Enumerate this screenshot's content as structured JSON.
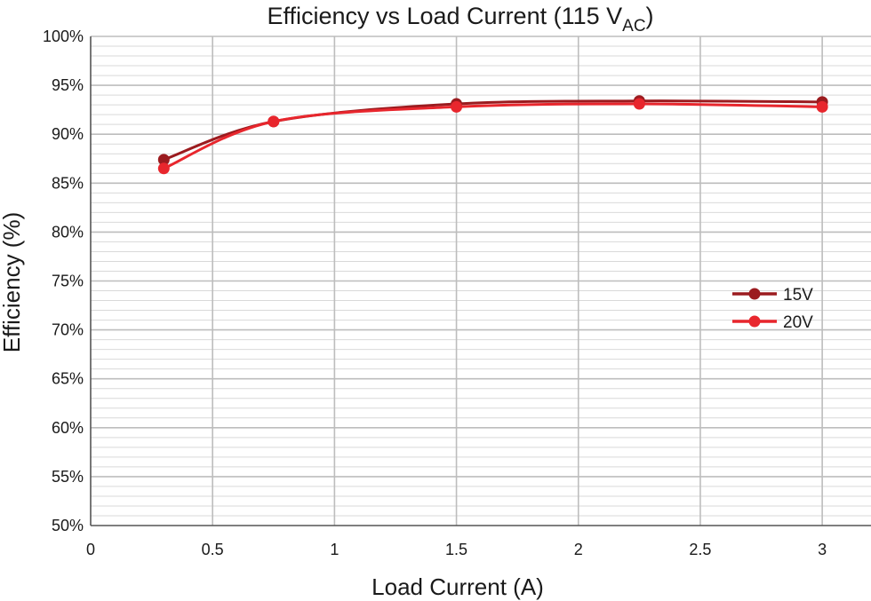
{
  "chart_data": {
    "type": "line",
    "title": "Efficiency vs Load Current (115 V",
    "title_subscript": "AC",
    "title_suffix": ")",
    "xlabel": "Load Current (A)",
    "ylabel": "Efficiency (%)",
    "xlim": [
      0,
      3.2
    ],
    "ylim": [
      50,
      100
    ],
    "x_ticks": [
      0,
      0.5,
      1,
      1.5,
      2,
      2.5,
      3
    ],
    "x_tick_labels": [
      "0",
      "0.5",
      "1",
      "1.5",
      "2",
      "2.5",
      "3"
    ],
    "y_ticks": [
      50,
      55,
      60,
      65,
      70,
      75,
      80,
      85,
      90,
      95,
      100
    ],
    "y_tick_labels": [
      "50%",
      "55%",
      "60%",
      "65%",
      "70%",
      "75%",
      "80%",
      "85%",
      "90%",
      "95%",
      "100%"
    ],
    "grid": true,
    "legend_position": "right",
    "series": [
      {
        "name": "15V",
        "color": "#9b1b1f",
        "x": [
          0.3,
          0.75,
          1.5,
          2.25,
          3
        ],
        "y": [
          87.4,
          91.3,
          93.1,
          93.4,
          93.3
        ]
      },
      {
        "name": "20V",
        "color": "#e8262d",
        "x": [
          0.3,
          0.75,
          1.5,
          2.25,
          3
        ],
        "y": [
          86.5,
          91.3,
          92.8,
          93.1,
          92.8
        ]
      }
    ]
  }
}
